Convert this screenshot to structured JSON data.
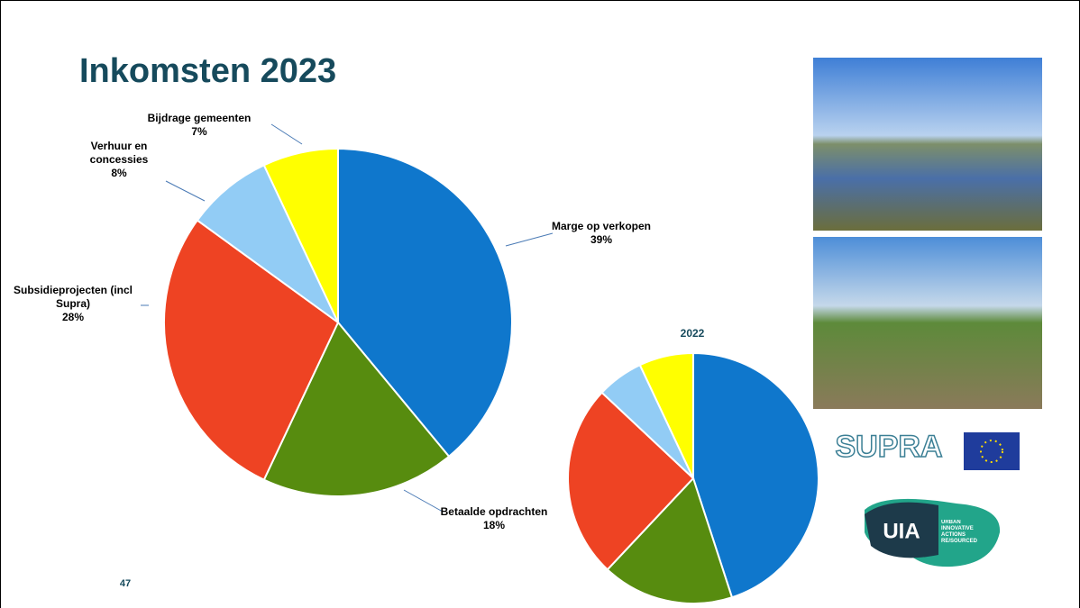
{
  "chart_data": [
    {
      "type": "pie",
      "title": "Inkomsten 2023",
      "categories": [
        "Marge op verkopen",
        "Betaalde opdrachten",
        "Subsidieprojecten (incl Supra)",
        "Verhuur en concessies",
        "Bijdrage gemeenten"
      ],
      "values": [
        39,
        18,
        28,
        8,
        7
      ],
      "value_labels": [
        "39%",
        "18%",
        "28%",
        "8%",
        "7%"
      ],
      "colors": [
        "#0f77cc",
        "#578c0f",
        "#ee4323",
        "#92ccf5",
        "#ffff00"
      ]
    },
    {
      "type": "pie",
      "title": "2022",
      "values": [
        45,
        17,
        25,
        6,
        7
      ],
      "colors": [
        "#0f77cc",
        "#578c0f",
        "#ee4323",
        "#92ccf5",
        "#ffff00"
      ]
    }
  ],
  "slide": {
    "page_number": "47"
  },
  "logos": {
    "supra": "SUPRA",
    "uia": "UIA",
    "uia_text": "URBAN INNOVATIVE ACTIONS",
    "uia_sub": "RE/SOURCED"
  }
}
